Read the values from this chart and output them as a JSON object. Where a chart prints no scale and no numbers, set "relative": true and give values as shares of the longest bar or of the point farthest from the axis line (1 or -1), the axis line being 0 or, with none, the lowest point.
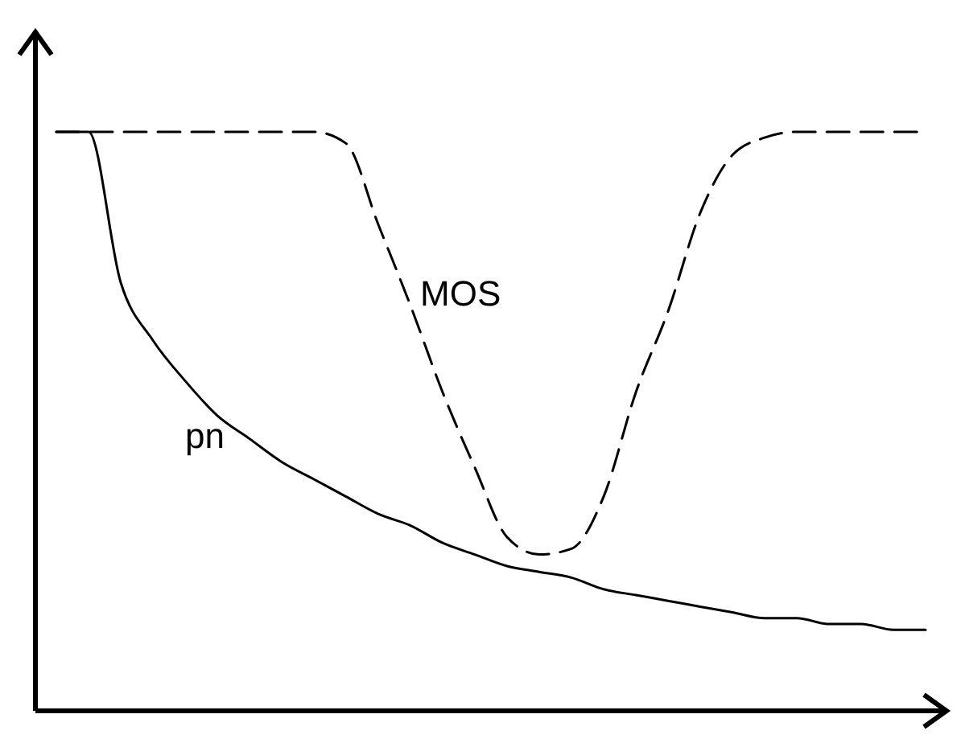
{
  "chart_data": {
    "type": "line",
    "relative": true,
    "categories": [
      null,
      null,
      null,
      null,
      null,
      null,
      null,
      null,
      null,
      null,
      null,
      null,
      null,
      null,
      null,
      null,
      null,
      null,
      null,
      null,
      null,
      null,
      null,
      null,
      null,
      null,
      null,
      null
    ],
    "series": [
      {
        "name": "MOS",
        "color": "#000000",
        "line_style": "dashed",
        "values": [
          1,
          1,
          1,
          1,
          1,
          1,
          1,
          1,
          1,
          0.98,
          0.84,
          0.7,
          0.55,
          0.42,
          0.3,
          0.27,
          0.28,
          0.37,
          0.55,
          0.69,
          0.86,
          0.96,
          0.99,
          1,
          1,
          1,
          1,
          1
        ]
      },
      {
        "name": "pn",
        "color": "#000000",
        "line_style": "solid",
        "values": [
          1,
          1,
          0.74,
          0.64,
          0.57,
          0.51,
          0.47,
          0.43,
          0.4,
          0.37,
          0.34,
          0.32,
          0.29,
          0.27,
          0.25,
          0.24,
          0.23,
          0.21,
          0.2,
          0.19,
          0.18,
          0.17,
          0.16,
          0.16,
          0.15,
          0.15,
          0.14,
          0.14
        ]
      }
    ],
    "marker": "none"
  }
}
